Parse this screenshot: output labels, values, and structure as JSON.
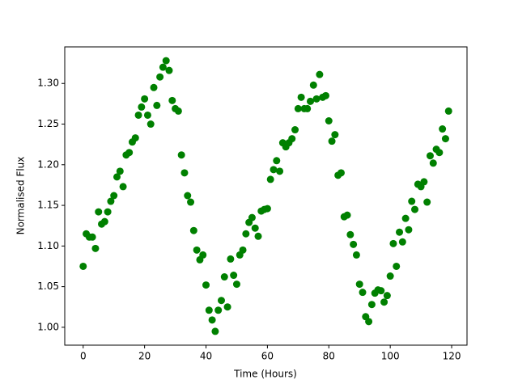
{
  "chart_data": {
    "type": "scatter",
    "x_label": "Time (Hours)",
    "y_label": "Normalised Flux",
    "color": "#008000",
    "x": [
      0,
      1,
      2,
      3,
      4,
      5,
      6,
      7,
      8,
      9,
      10,
      11,
      12,
      13,
      14,
      15,
      16,
      17,
      18,
      19,
      20,
      21,
      22,
      23,
      24,
      25,
      26,
      27,
      28,
      29,
      30,
      31,
      32,
      33,
      34,
      35,
      36,
      37,
      38,
      39,
      40,
      41,
      42,
      43,
      44,
      45,
      46,
      47,
      48,
      49,
      50,
      51,
      52,
      53,
      54,
      55,
      56,
      57,
      58,
      59,
      60,
      61,
      62,
      63,
      64,
      65,
      66,
      67,
      68,
      69,
      70,
      71,
      72,
      73,
      74,
      75,
      76,
      77,
      78,
      79,
      80,
      81,
      82,
      83,
      84,
      85,
      86,
      87,
      88,
      89,
      90,
      91,
      92,
      93,
      94,
      95,
      96,
      97,
      98,
      99,
      100,
      101,
      102,
      103,
      104,
      105,
      106,
      107,
      108,
      109,
      110,
      111,
      112,
      113,
      114,
      115,
      116,
      117,
      118,
      119
    ],
    "values": [
      1.075,
      1.115,
      1.111,
      1.111,
      1.097,
      1.142,
      1.127,
      1.13,
      1.142,
      1.155,
      1.162,
      1.185,
      1.192,
      1.173,
      1.212,
      1.215,
      1.228,
      1.233,
      1.261,
      1.271,
      1.281,
      1.261,
      1.25,
      1.295,
      1.273,
      1.308,
      1.32,
      1.328,
      1.316,
      1.279,
      1.269,
      1.266,
      1.212,
      1.19,
      1.162,
      1.154,
      1.119,
      1.095,
      1.083,
      1.089,
      1.052,
      1.021,
      1.009,
      0.995,
      1.021,
      1.033,
      1.062,
      1.025,
      1.084,
      1.064,
      1.053,
      1.089,
      1.095,
      1.115,
      1.129,
      1.135,
      1.122,
      1.112,
      1.143,
      1.145,
      1.146,
      1.182,
      1.194,
      1.205,
      1.192,
      1.227,
      1.222,
      1.227,
      1.232,
      1.243,
      1.269,
      1.283,
      1.269,
      1.269,
      1.278,
      1.298,
      1.281,
      1.311,
      1.283,
      1.285,
      1.254,
      1.229,
      1.237,
      1.187,
      1.19,
      1.136,
      1.138,
      1.114,
      1.102,
      1.089,
      1.053,
      1.043,
      1.013,
      1.007,
      1.028,
      1.042,
      1.046,
      1.045,
      1.031,
      1.039,
      1.063,
      1.103,
      1.075,
      1.117,
      1.105,
      1.134,
      1.12,
      1.155,
      1.145,
      1.176,
      1.173,
      1.179,
      1.154,
      1.211,
      1.202,
      1.219,
      1.215,
      1.244,
      1.232,
      1.266
    ],
    "xlim": [
      -6,
      125
    ],
    "ylim": [
      0.978,
      1.345
    ],
    "xticks": [
      0,
      20,
      40,
      60,
      80,
      100,
      120
    ],
    "yticks": [
      {
        "value": 1.0,
        "label": "1.00"
      },
      1.05,
      {
        "value": 1.1,
        "label": "1.10"
      },
      1.15,
      {
        "value": 1.2,
        "label": "1.20"
      },
      1.25,
      {
        "value": 1.3,
        "label": "1.30"
      }
    ]
  }
}
